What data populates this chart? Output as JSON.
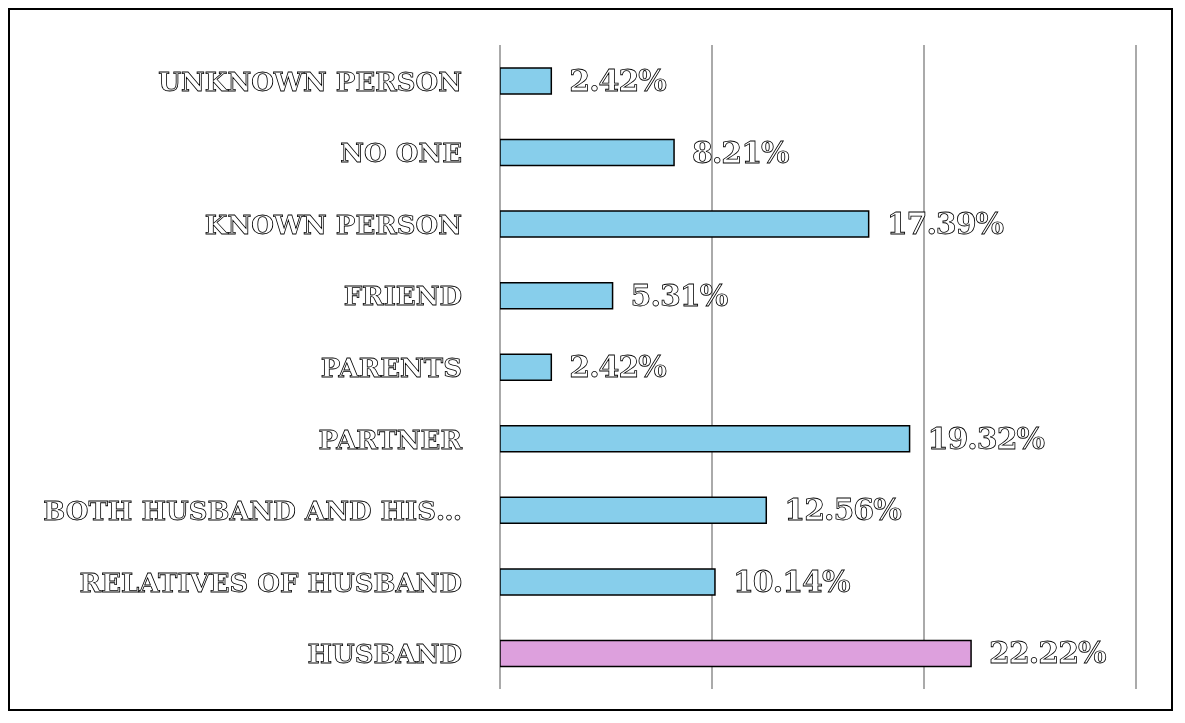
{
  "chart_data": {
    "type": "bar",
    "orientation": "horizontal",
    "categories": [
      "UNKNOWN PERSON",
      "NO ONE",
      "KNOWN PERSON",
      "FRIEND",
      "PARENTS",
      "PARTNER",
      "BOTH HUSBAND AND HIS…",
      "RELATIVES OF HUSBAND",
      "HUSBAND"
    ],
    "values": [
      2.42,
      8.21,
      17.39,
      5.31,
      2.42,
      19.32,
      12.56,
      10.14,
      22.22
    ],
    "colors": [
      "#87ceeb",
      "#87ceeb",
      "#87ceeb",
      "#87ceeb",
      "#87ceeb",
      "#87ceeb",
      "#87ceeb",
      "#87ceeb",
      "#dda0dd"
    ],
    "value_labels": [
      "2.42%",
      "8.21%",
      "17.39%",
      "5.31%",
      "2.42%",
      "19.32%",
      "12.56%",
      "10.14%",
      "22.22%"
    ],
    "xlim": [
      0,
      30
    ],
    "xticks": [
      {
        "value": 0,
        "label": null
      },
      {
        "value": 10,
        "label": null
      },
      {
        "value": 20,
        "label": null
      },
      {
        "value": 30,
        "label": null
      }
    ],
    "tick_labels": "y",
    "grid": "x"
  }
}
